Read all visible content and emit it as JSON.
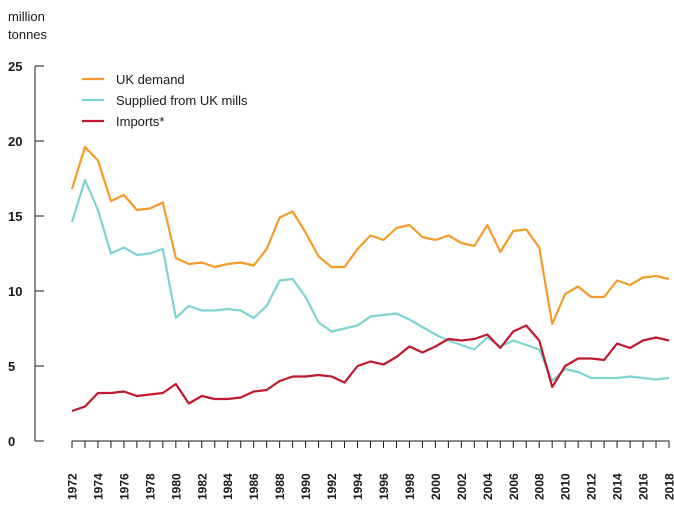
{
  "chart_data": {
    "type": "line",
    "ylabel_line1": "million",
    "ylabel_line2": "tonnes",
    "ylim": [
      0,
      25
    ],
    "yticks": [
      0,
      5,
      10,
      15,
      20,
      25
    ],
    "ytick_labels": [
      "0",
      "5",
      "10",
      "15",
      "20",
      "25"
    ],
    "x": [
      1972,
      1973,
      1974,
      1975,
      1976,
      1977,
      1978,
      1979,
      1980,
      1981,
      1982,
      1983,
      1984,
      1985,
      1986,
      1987,
      1988,
      1989,
      1990,
      1991,
      1992,
      1993,
      1994,
      1995,
      1996,
      1997,
      1998,
      1999,
      2000,
      2001,
      2002,
      2003,
      2004,
      2005,
      2006,
      2007,
      2008,
      2009,
      2010,
      2011,
      2012,
      2013,
      2014,
      2015,
      2016,
      2017,
      2018
    ],
    "xtick_labels": [
      "1972",
      "1974",
      "1976",
      "1978",
      "1980",
      "1982",
      "1984",
      "1986",
      "1988",
      "1990",
      "1992",
      "1994",
      "1996",
      "1998",
      "2000",
      "2002",
      "2004",
      "2006",
      "2008",
      "2010",
      "2012",
      "2014",
      "2016",
      "2018"
    ],
    "legend_position": "top-left",
    "grid": false,
    "series": [
      {
        "name": "UK demand",
        "color": "#f39c2a",
        "values": [
          16.8,
          19.6,
          18.7,
          16.0,
          16.4,
          15.4,
          15.5,
          15.9,
          12.2,
          11.8,
          11.9,
          11.6,
          11.8,
          11.9,
          11.7,
          12.8,
          14.9,
          15.3,
          13.9,
          12.3,
          11.6,
          11.6,
          12.8,
          13.7,
          13.4,
          14.2,
          14.4,
          13.6,
          13.4,
          13.7,
          13.2,
          13.0,
          14.4,
          12.6,
          14.0,
          14.1,
          12.9,
          7.8,
          9.8,
          10.3,
          9.6,
          9.6,
          10.7,
          10.4,
          10.9,
          11.0,
          10.8
        ]
      },
      {
        "name": "Supplied from UK mills",
        "color": "#7fd3d0",
        "values": [
          14.6,
          17.4,
          15.4,
          12.5,
          12.9,
          12.4,
          12.5,
          12.8,
          8.2,
          9.0,
          8.7,
          8.7,
          8.8,
          8.7,
          8.2,
          9.0,
          10.7,
          10.8,
          9.6,
          7.9,
          7.3,
          7.5,
          7.7,
          8.3,
          8.4,
          8.5,
          8.1,
          7.6,
          7.1,
          6.7,
          6.4,
          6.1,
          6.9,
          6.3,
          6.7,
          6.4,
          6.1,
          4.0,
          4.8,
          4.6,
          4.2,
          4.2,
          4.2,
          4.3,
          4.2,
          4.1,
          4.2
        ]
      },
      {
        "name": "Imports*",
        "color": "#c0182c",
        "values": [
          2.0,
          2.3,
          3.2,
          3.2,
          3.3,
          3.0,
          3.1,
          3.2,
          3.8,
          2.5,
          3.0,
          2.8,
          2.8,
          2.9,
          3.3,
          3.4,
          4.0,
          4.3,
          4.3,
          4.4,
          4.3,
          3.9,
          5.0,
          5.3,
          5.1,
          5.6,
          6.3,
          5.9,
          6.3,
          6.8,
          6.7,
          6.8,
          7.1,
          6.2,
          7.3,
          7.7,
          6.7,
          3.6,
          5.0,
          5.5,
          5.5,
          5.4,
          6.5,
          6.2,
          6.7,
          6.9,
          6.7
        ]
      }
    ]
  }
}
